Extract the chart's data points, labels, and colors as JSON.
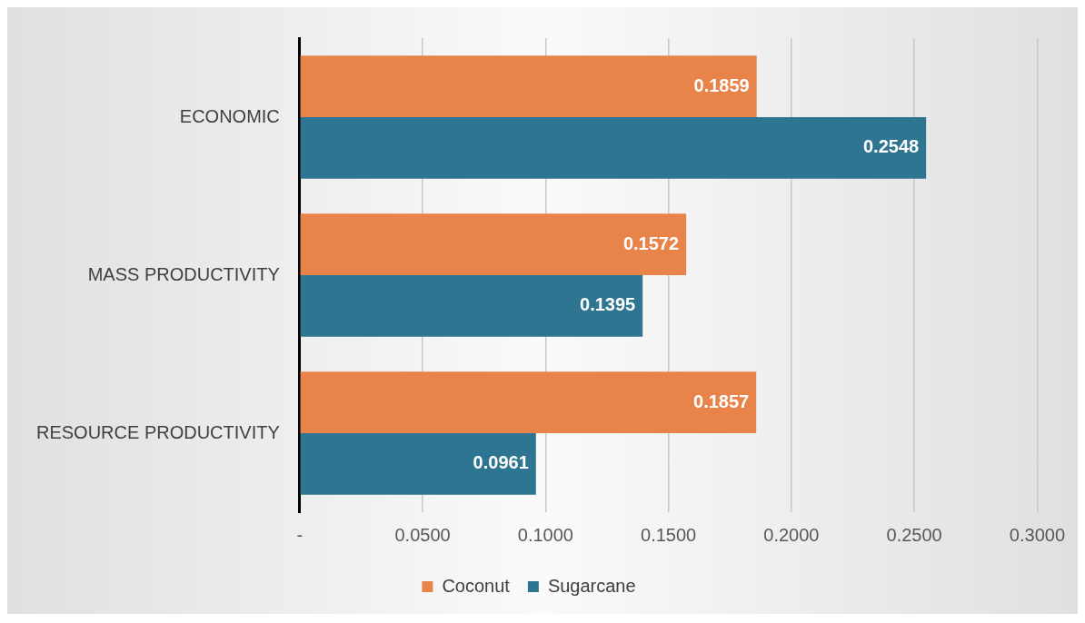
{
  "chart_data": {
    "type": "bar",
    "orientation": "horizontal",
    "categories": [
      "ECONOMIC",
      "MASS PRODUCTIVITY",
      "RESOURCE PRODUCTIVITY"
    ],
    "series": [
      {
        "name": "Coconut",
        "color": "#e8834a",
        "values": [
          0.1859,
          0.1572,
          0.1857
        ]
      },
      {
        "name": "Sugarcane",
        "color": "#2e7591",
        "values": [
          0.2548,
          0.1395,
          0.0961
        ]
      }
    ],
    "xlim": [
      0,
      0.3
    ],
    "xticks": [
      {
        "value": 0,
        "label": "-"
      },
      {
        "value": 0.05,
        "label": "0.0500"
      },
      {
        "value": 0.1,
        "label": "0.1000"
      },
      {
        "value": 0.15,
        "label": "0.1500"
      },
      {
        "value": 0.2,
        "label": "0.2000"
      },
      {
        "value": 0.25,
        "label": "0.2500"
      },
      {
        "value": 0.3,
        "label": "0.3000"
      }
    ],
    "grid": "x",
    "legend": "bottom",
    "data_labels": true
  }
}
